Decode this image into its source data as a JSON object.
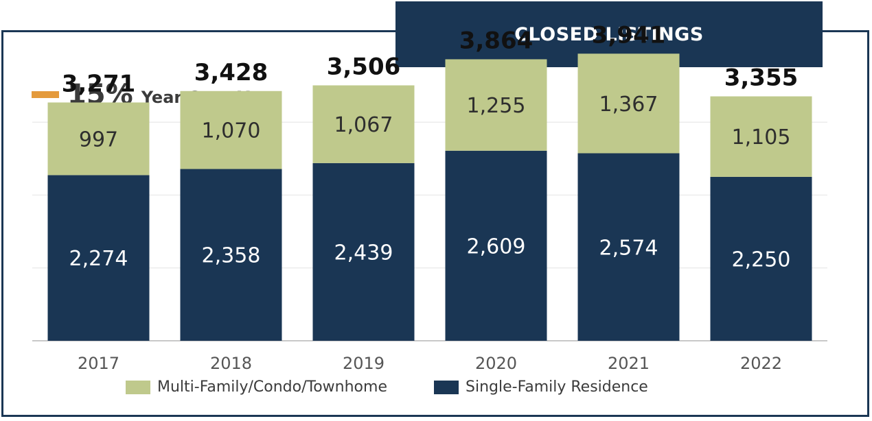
{
  "header": {
    "title": "CLOSED LISTINGS"
  },
  "yoy": {
    "percent": "15%",
    "label": "Year Over Year",
    "marker_color": "#e49a3c"
  },
  "legend": {
    "multi_family": "Multi-Family/Condo/Townhome",
    "single_family": "Single-Family Residence"
  },
  "colors": {
    "multi_family": "#bfc98c",
    "single_family": "#1a3654",
    "frame": "#1a3654"
  },
  "chart_data": {
    "type": "bar",
    "stacked": true,
    "categories": [
      "2017",
      "2018",
      "2019",
      "2020",
      "2021",
      "2022"
    ],
    "series": [
      {
        "name": "Single-Family Residence",
        "values": [
          2274,
          2358,
          2439,
          2609,
          2574,
          2250
        ]
      },
      {
        "name": "Multi-Family/Condo/Townhome",
        "values": [
          997,
          1070,
          1067,
          1255,
          1367,
          1105
        ]
      }
    ],
    "totals": [
      3271,
      3428,
      3506,
      3864,
      3941,
      3355
    ],
    "series_labels": [
      [
        "2,274",
        "2,358",
        "2,439",
        "2,609",
        "2,574",
        "2,250"
      ],
      [
        "997",
        "1,070",
        "1,067",
        "1,255",
        "1,367",
        "1,105"
      ]
    ],
    "total_labels": [
      "3,271",
      "3,428",
      "3,506",
      "3,864",
      "3,941",
      "3,355"
    ],
    "ylim": [
      0,
      4000
    ],
    "grid": true,
    "legend_position": "bottom"
  }
}
